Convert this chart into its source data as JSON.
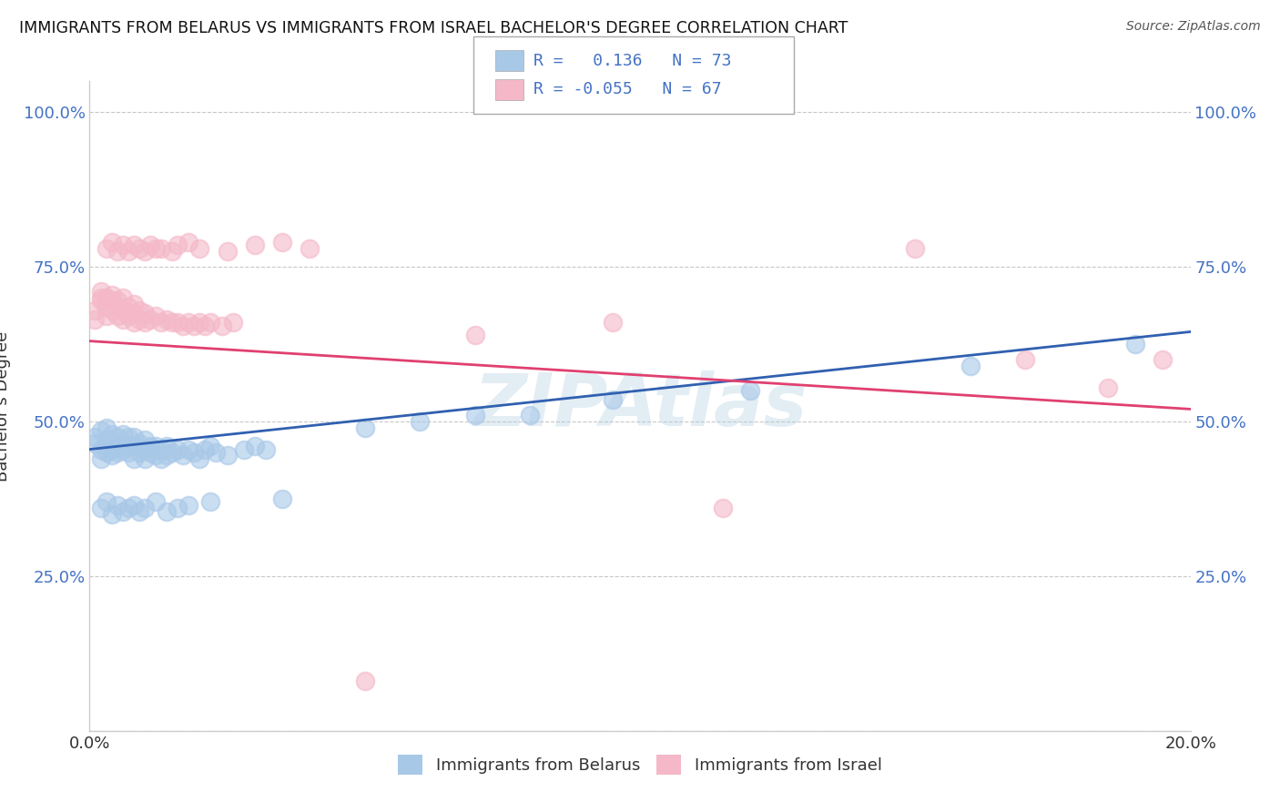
{
  "title": "IMMIGRANTS FROM BELARUS VS IMMIGRANTS FROM ISRAEL BACHELOR'S DEGREE CORRELATION CHART",
  "source": "Source: ZipAtlas.com",
  "ylabel": "Bachelor's Degree",
  "xlabel": "",
  "legend_label1": "Immigrants from Belarus",
  "legend_label2": "Immigrants from Israel",
  "R1": 0.136,
  "N1": 73,
  "R2": -0.055,
  "N2": 67,
  "color_blue": "#a8c8e8",
  "color_pink": "#f4b8c8",
  "line_color_blue": "#3060b0",
  "line_color_pink": "#e04070",
  "xlim": [
    0.0,
    0.2
  ],
  "ylim": [
    0.0,
    1.05
  ],
  "xtick_labels": [
    "0.0%",
    "",
    "",
    "",
    "20.0%"
  ],
  "ytick_labels": [
    "",
    "25.0%",
    "50.0%",
    "75.0%",
    "100.0%"
  ],
  "watermark": "ZIPAtlas",
  "background_color": "#ffffff",
  "grid_color": "#c8c8c8",
  "belarus_x": [
    0.001,
    0.001,
    0.002,
    0.002,
    0.002,
    0.003,
    0.003,
    0.003,
    0.003,
    0.004,
    0.004,
    0.004,
    0.005,
    0.005,
    0.005,
    0.006,
    0.006,
    0.006,
    0.007,
    0.007,
    0.007,
    0.008,
    0.008,
    0.008,
    0.009,
    0.009,
    0.01,
    0.01,
    0.01,
    0.011,
    0.011,
    0.012,
    0.012,
    0.013,
    0.013,
    0.014,
    0.014,
    0.015,
    0.016,
    0.017,
    0.018,
    0.019,
    0.02,
    0.021,
    0.022,
    0.023,
    0.025,
    0.028,
    0.03,
    0.032,
    0.002,
    0.003,
    0.004,
    0.005,
    0.006,
    0.007,
    0.008,
    0.009,
    0.01,
    0.012,
    0.014,
    0.016,
    0.018,
    0.022,
    0.035,
    0.05,
    0.06,
    0.07,
    0.08,
    0.095,
    0.12,
    0.16,
    0.19
  ],
  "belarus_y": [
    0.465,
    0.475,
    0.44,
    0.455,
    0.485,
    0.45,
    0.46,
    0.47,
    0.49,
    0.445,
    0.455,
    0.48,
    0.45,
    0.465,
    0.475,
    0.455,
    0.465,
    0.48,
    0.45,
    0.46,
    0.475,
    0.44,
    0.46,
    0.475,
    0.45,
    0.465,
    0.44,
    0.455,
    0.47,
    0.45,
    0.46,
    0.445,
    0.46,
    0.44,
    0.455,
    0.445,
    0.46,
    0.45,
    0.455,
    0.445,
    0.455,
    0.45,
    0.44,
    0.455,
    0.46,
    0.45,
    0.445,
    0.455,
    0.46,
    0.455,
    0.36,
    0.37,
    0.35,
    0.365,
    0.355,
    0.36,
    0.365,
    0.355,
    0.36,
    0.37,
    0.355,
    0.36,
    0.365,
    0.37,
    0.375,
    0.49,
    0.5,
    0.51,
    0.51,
    0.535,
    0.55,
    0.59,
    0.625
  ],
  "israel_x": [
    0.001,
    0.001,
    0.002,
    0.002,
    0.002,
    0.003,
    0.003,
    0.003,
    0.004,
    0.004,
    0.004,
    0.005,
    0.005,
    0.005,
    0.006,
    0.006,
    0.006,
    0.007,
    0.007,
    0.008,
    0.008,
    0.008,
    0.009,
    0.009,
    0.01,
    0.01,
    0.011,
    0.012,
    0.013,
    0.014,
    0.015,
    0.016,
    0.017,
    0.018,
    0.019,
    0.02,
    0.021,
    0.022,
    0.024,
    0.026,
    0.003,
    0.004,
    0.005,
    0.006,
    0.007,
    0.008,
    0.009,
    0.01,
    0.011,
    0.012,
    0.013,
    0.015,
    0.016,
    0.018,
    0.02,
    0.025,
    0.03,
    0.035,
    0.04,
    0.05,
    0.07,
    0.095,
    0.115,
    0.15,
    0.17,
    0.185,
    0.195
  ],
  "israel_y": [
    0.665,
    0.68,
    0.695,
    0.7,
    0.71,
    0.67,
    0.685,
    0.7,
    0.68,
    0.695,
    0.705,
    0.67,
    0.685,
    0.695,
    0.665,
    0.68,
    0.7,
    0.67,
    0.685,
    0.66,
    0.675,
    0.69,
    0.665,
    0.68,
    0.66,
    0.675,
    0.665,
    0.67,
    0.66,
    0.665,
    0.66,
    0.66,
    0.655,
    0.66,
    0.655,
    0.66,
    0.655,
    0.66,
    0.655,
    0.66,
    0.78,
    0.79,
    0.775,
    0.785,
    0.775,
    0.785,
    0.78,
    0.775,
    0.785,
    0.78,
    0.78,
    0.775,
    0.785,
    0.79,
    0.78,
    0.775,
    0.785,
    0.79,
    0.78,
    0.08,
    0.64,
    0.66,
    0.36,
    0.78,
    0.6,
    0.555,
    0.6
  ]
}
